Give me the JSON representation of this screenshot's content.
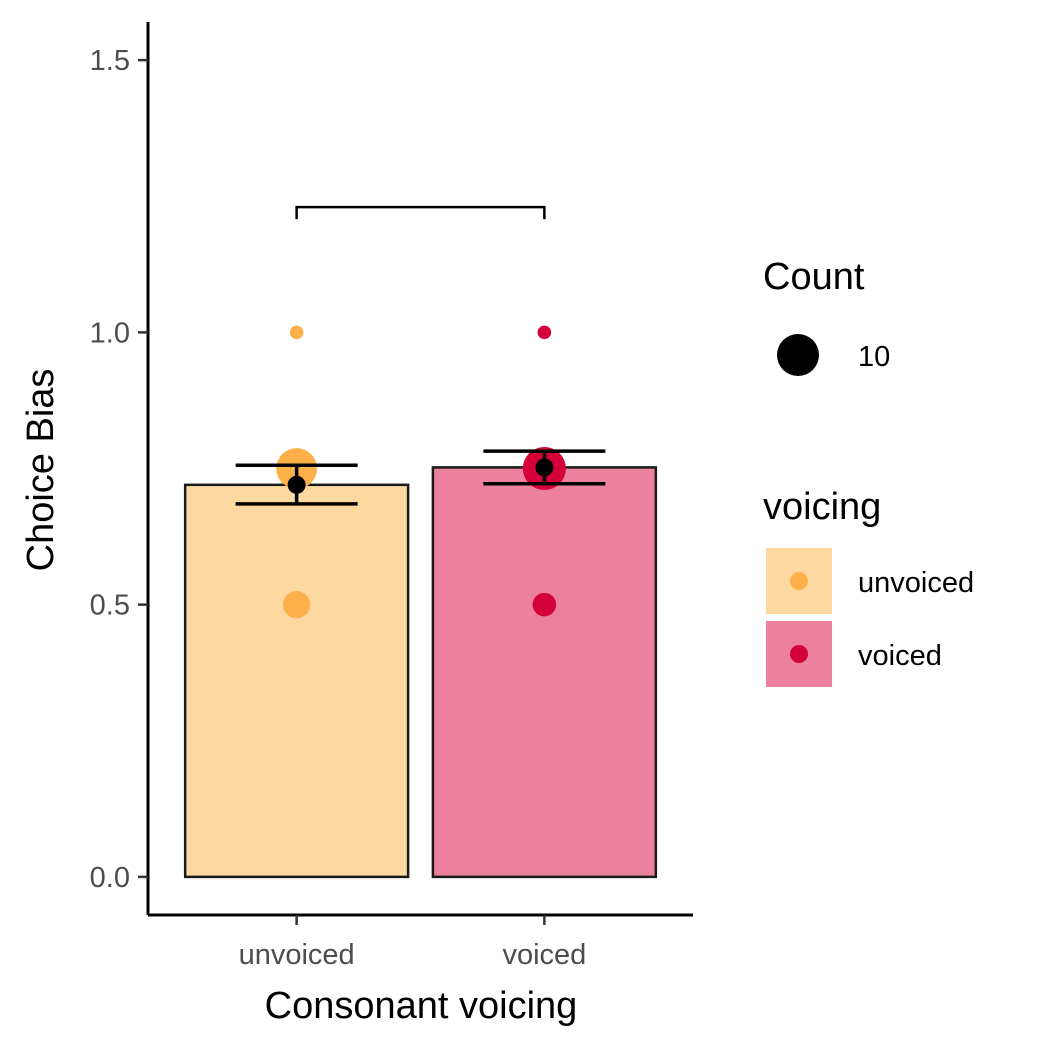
{
  "chart_data": {
    "type": "bar",
    "xlabel": "Consonant voicing",
    "ylabel": "Choice Bias",
    "ylim": [
      -0.07,
      1.57
    ],
    "yticks": [
      0.0,
      0.5,
      1.0,
      1.5
    ],
    "ytick_labels": [
      "0.0",
      "0.5",
      "1.0",
      "1.5"
    ],
    "categories": [
      "unvoiced",
      "voiced"
    ],
    "bars": [
      {
        "category": "unvoiced",
        "value": 0.72,
        "fill": "#fdd8a0",
        "stroke": "#1a1a1a",
        "mean": 0.72,
        "error": [
          0.685,
          0.756
        ],
        "points": [
          {
            "y": 1.0,
            "count": 1
          },
          {
            "y": 0.75,
            "count": 9
          },
          {
            "y": 0.5,
            "count": 4
          }
        ],
        "point_color": "#fdb04a"
      },
      {
        "category": "voiced",
        "value": 0.752,
        "fill": "#eb819e",
        "stroke": "#1a1a1a",
        "mean": 0.752,
        "error": [
          0.722,
          0.782
        ],
        "points": [
          {
            "y": 1.0,
            "count": 1
          },
          {
            "y": 0.75,
            "count": 10
          },
          {
            "y": 0.5,
            "count": 3
          }
        ],
        "point_color": "#d5003a"
      }
    ],
    "comparison_bracket": {
      "from": "unvoiced",
      "to": "voiced",
      "y": 1.23,
      "label": ""
    },
    "legend": {
      "position": "right",
      "size": {
        "title": "Count",
        "entries": [
          {
            "label": "10",
            "count": 10
          }
        ]
      },
      "fill": {
        "title": "voicing",
        "entries": [
          {
            "label": "unvoiced",
            "fill": "#fdd8a0",
            "point": "#fdb04a"
          },
          {
            "label": "voiced",
            "fill": "#eb819e",
            "point": "#d5003a"
          }
        ]
      }
    }
  }
}
